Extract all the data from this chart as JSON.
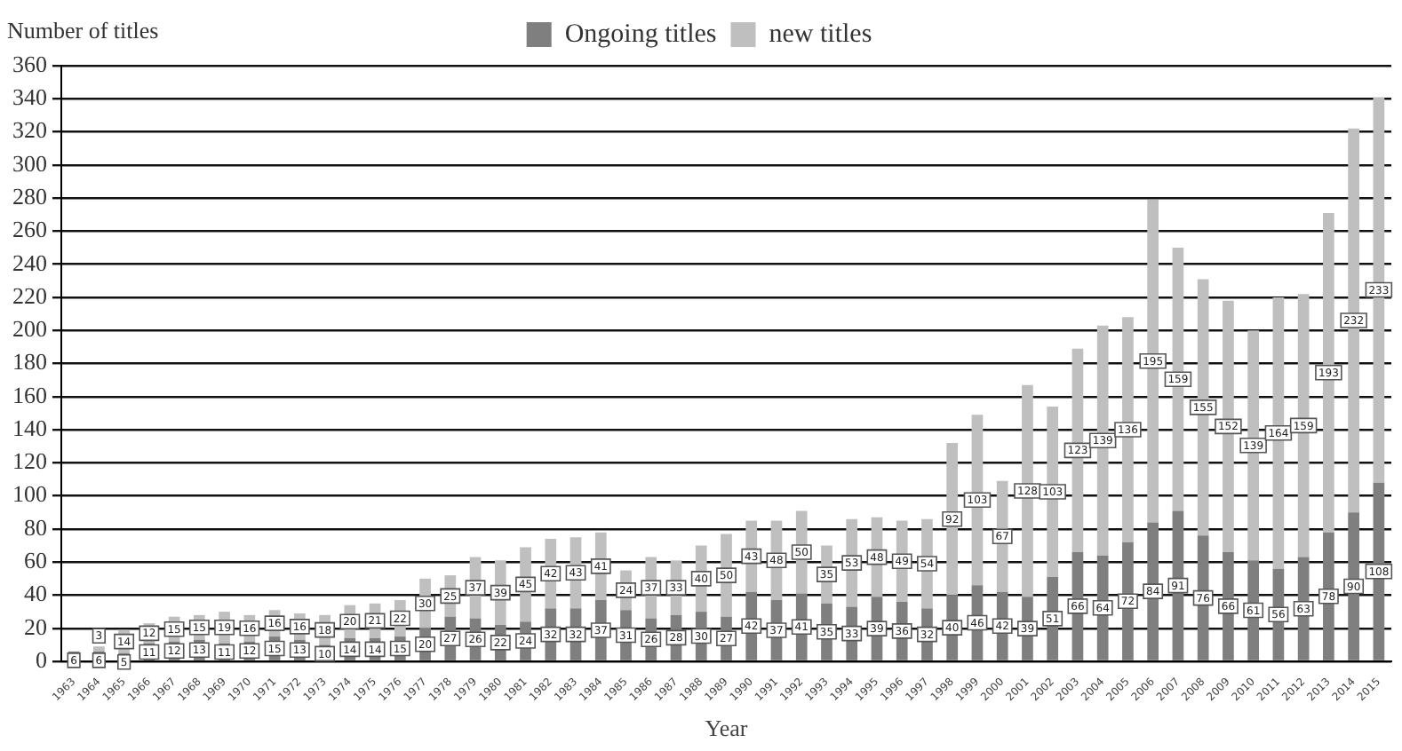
{
  "chart_data": {
    "type": "bar",
    "stacked": true,
    "xlabel": "Year",
    "ylabel": "Number of titles",
    "categories": [
      "1963",
      "1964",
      "1965",
      "1966",
      "1967",
      "1968",
      "1969",
      "1970",
      "1971",
      "1972",
      "1973",
      "1974",
      "1975",
      "1976",
      "1977",
      "1978",
      "1979",
      "1980",
      "1981",
      "1982",
      "1983",
      "1984",
      "1985",
      "1986",
      "1987",
      "1988",
      "1989",
      "1990",
      "1991",
      "1992",
      "1993",
      "1994",
      "1995",
      "1996",
      "1997",
      "1998",
      "1999",
      "2000",
      "2001",
      "2002",
      "2003",
      "2004",
      "2005",
      "2006",
      "2007",
      "2008",
      "2009",
      "2010",
      "2011",
      "2012",
      "2013",
      "2014",
      "2015"
    ],
    "series": [
      {
        "name": "Ongoing titles",
        "color": "#7f7f7f",
        "values": [
          6,
          6,
          5,
          11,
          12,
          13,
          11,
          12,
          15,
          13,
          10,
          14,
          14,
          15,
          20,
          27,
          26,
          22,
          24,
          32,
          32,
          37,
          31,
          26,
          28,
          30,
          27,
          42,
          37,
          41,
          35,
          33,
          39,
          36,
          32,
          40,
          46,
          42,
          39,
          51,
          66,
          64,
          72,
          84,
          91,
          76,
          66,
          61,
          56,
          63,
          78,
          90,
          108
        ]
      },
      {
        "name": "new titles",
        "color": "#bfbfbf",
        "values": [
          null,
          3,
          14,
          12,
          15,
          15,
          19,
          16,
          16,
          16,
          18,
          20,
          21,
          22,
          30,
          25,
          37,
          39,
          45,
          42,
          43,
          41,
          24,
          37,
          33,
          40,
          50,
          43,
          48,
          50,
          35,
          53,
          48,
          49,
          54,
          92,
          103,
          67,
          128,
          103,
          123,
          139,
          136,
          195,
          159,
          155,
          152,
          139,
          164,
          159,
          193,
          232,
          233
        ]
      }
    ],
    "ylim": [
      0,
      360
    ],
    "yticks": [
      0,
      20,
      40,
      60,
      80,
      100,
      120,
      140,
      160,
      180,
      200,
      220,
      240,
      260,
      280,
      300,
      320,
      340,
      360
    ],
    "grid": "y",
    "legend": "top",
    "data_labels": true
  }
}
